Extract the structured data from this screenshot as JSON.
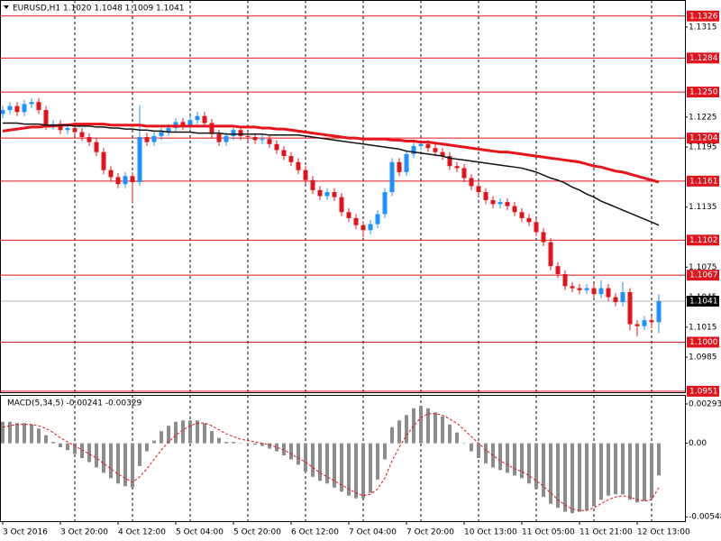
{
  "chart_data": [
    {
      "type": "candlestick",
      "title": "EURUSD,H1  1.1020 1.1048 1.1009 1.1041",
      "categories": [
        "3 Oct 2016",
        null,
        null,
        null,
        null,
        null,
        null,
        null,
        "3 Oct 20:00",
        null,
        null,
        null,
        null,
        null,
        null,
        null,
        "4 Oct 12:00",
        null,
        null,
        null,
        null,
        null,
        null,
        null,
        "5 Oct 04:00",
        null,
        null,
        null,
        null,
        null,
        null,
        null,
        "5 Oct 20:00",
        null,
        null,
        null,
        null,
        null,
        null,
        null,
        "6 Oct 12:00",
        null,
        null,
        null,
        null,
        null,
        null,
        null,
        "7 Oct 04:00",
        null,
        null,
        null,
        null,
        null,
        null,
        null,
        "7 Oct 20:00",
        null,
        null,
        null,
        null,
        null,
        null,
        null,
        "10 Oct 13:00",
        null,
        null,
        null,
        null,
        null,
        null,
        null,
        "11 Oct 05:00",
        null,
        null,
        null,
        null,
        null,
        null,
        null,
        "11 Oct 21:00",
        null,
        null,
        null,
        null,
        null,
        null,
        null,
        "12 Oct 13:00",
        null,
        null,
        null
      ],
      "open": [
        1.1228,
        1.1232,
        1.1236,
        1.123,
        1.1238,
        1.124,
        1.1232,
        1.1216,
        1.1218,
        1.1212,
        1.1214,
        1.121,
        1.1205,
        1.12,
        1.119,
        1.1172,
        1.1165,
        1.1158,
        1.1166,
        1.116,
        1.1205,
        1.12,
        1.1206,
        1.121,
        1.1214,
        1.122,
        1.1216,
        1.1222,
        1.1226,
        1.1219,
        1.1208,
        1.12,
        1.1206,
        1.1212,
        1.1206,
        1.1205,
        1.1202,
        1.1203,
        1.1198,
        1.1192,
        1.1186,
        1.118,
        1.1172,
        1.1162,
        1.1152,
        1.1146,
        1.115,
        1.1145,
        1.113,
        1.1124,
        1.1117,
        1.1112,
        1.1118,
        1.1128,
        1.115,
        1.118,
        1.117,
        1.1188,
        1.1196,
        1.1198,
        1.1194,
        1.119,
        1.1186,
        1.1176,
        1.1174,
        1.1164,
        1.1156,
        1.115,
        1.1142,
        1.1138,
        1.114,
        1.1136,
        1.113,
        1.1124,
        1.112,
        1.111,
        1.11,
        1.1076,
        1.1068,
        1.1056,
        1.1054,
        1.1052,
        1.1054,
        1.1048,
        1.1054,
        1.1045,
        1.104,
        1.105,
        1.1018,
        1.1016,
        1.1022,
        1.102
      ],
      "high": [
        1.1236,
        1.124,
        1.124,
        1.1242,
        1.1244,
        1.1244,
        1.1236,
        1.1222,
        1.1222,
        1.1218,
        1.1218,
        1.1214,
        1.1209,
        1.1204,
        1.1194,
        1.1176,
        1.1169,
        1.117,
        1.117,
        1.1237,
        1.1209,
        1.121,
        1.1214,
        1.1218,
        1.1224,
        1.1224,
        1.1226,
        1.123,
        1.123,
        1.1223,
        1.1212,
        1.121,
        1.1216,
        1.1216,
        1.121,
        1.1209,
        1.1207,
        1.1207,
        1.1202,
        1.1196,
        1.119,
        1.1184,
        1.1176,
        1.1166,
        1.1156,
        1.1154,
        1.1154,
        1.1149,
        1.1134,
        1.1128,
        1.1121,
        1.1122,
        1.1132,
        1.1154,
        1.1184,
        1.1184,
        1.1192,
        1.12,
        1.1202,
        1.1202,
        1.1198,
        1.1194,
        1.119,
        1.118,
        1.1178,
        1.1168,
        1.116,
        1.1154,
        1.1146,
        1.1144,
        1.1144,
        1.114,
        1.1134,
        1.1128,
        1.1124,
        1.1114,
        1.1104,
        1.108,
        1.1072,
        1.106,
        1.1058,
        1.1058,
        1.1058,
        1.1062,
        1.1058,
        1.1049,
        1.106,
        1.1054,
        1.1022,
        1.1026,
        1.1026,
        1.1048
      ],
      "low": [
        1.1224,
        1.1228,
        1.1226,
        1.1226,
        1.1234,
        1.1228,
        1.1212,
        1.1212,
        1.1208,
        1.1208,
        1.1206,
        1.1201,
        1.1196,
        1.1186,
        1.1168,
        1.1161,
        1.1154,
        1.1154,
        1.114,
        1.1156,
        1.1196,
        1.1196,
        1.1202,
        1.1206,
        1.121,
        1.1212,
        1.1212,
        1.1218,
        1.1215,
        1.1204,
        1.1196,
        1.1196,
        1.1202,
        1.1202,
        1.1201,
        1.1198,
        1.1198,
        1.1194,
        1.1188,
        1.1182,
        1.1176,
        1.1168,
        1.1158,
        1.1148,
        1.1142,
        1.1142,
        1.1141,
        1.1126,
        1.112,
        1.1113,
        1.1105,
        1.1108,
        1.1114,
        1.1124,
        1.1146,
        1.1166,
        1.1166,
        1.1184,
        1.1192,
        1.119,
        1.1186,
        1.1182,
        1.1172,
        1.117,
        1.116,
        1.1152,
        1.1146,
        1.1138,
        1.1134,
        1.1134,
        1.1132,
        1.1126,
        1.112,
        1.1116,
        1.1106,
        1.1096,
        1.1072,
        1.1064,
        1.1052,
        1.105,
        1.1048,
        1.1048,
        1.1044,
        1.1044,
        1.1041,
        1.1036,
        1.1036,
        1.1012,
        1.1006,
        1.1012,
        1.1014,
        1.1009
      ],
      "close": [
        1.1232,
        1.1236,
        1.123,
        1.1238,
        1.124,
        1.1232,
        1.1216,
        1.1218,
        1.1212,
        1.1214,
        1.121,
        1.1205,
        1.12,
        1.119,
        1.1172,
        1.1165,
        1.1158,
        1.1166,
        1.116,
        1.1205,
        1.12,
        1.1206,
        1.121,
        1.1214,
        1.122,
        1.1216,
        1.1222,
        1.1226,
        1.1219,
        1.1208,
        1.12,
        1.1206,
        1.1212,
        1.1206,
        1.1205,
        1.1202,
        1.1203,
        1.1198,
        1.1192,
        1.1186,
        1.118,
        1.1172,
        1.1162,
        1.1152,
        1.1146,
        1.115,
        1.1145,
        1.113,
        1.1124,
        1.1117,
        1.1112,
        1.1118,
        1.1128,
        1.115,
        1.118,
        1.117,
        1.1188,
        1.1196,
        1.1198,
        1.1194,
        1.119,
        1.1186,
        1.1176,
        1.1174,
        1.1164,
        1.1156,
        1.115,
        1.1142,
        1.1138,
        1.114,
        1.1136,
        1.113,
        1.1124,
        1.112,
        1.111,
        1.11,
        1.1076,
        1.1068,
        1.1056,
        1.1054,
        1.1052,
        1.1054,
        1.1048,
        1.1054,
        1.1045,
        1.104,
        1.105,
        1.1018,
        1.1016,
        1.1022,
        1.102,
        1.1041
      ],
      "up_color": "#1e90ff",
      "down_color": "#e0141c",
      "moving_averages": [
        {
          "color": "#e8141c",
          "values": [
            1.1211,
            1.1212,
            1.1213,
            1.1214,
            1.1215,
            1.1215,
            1.1216,
            1.1216,
            1.1217,
            1.1217,
            1.1218,
            1.1218,
            1.1218,
            1.1218,
            1.1218,
            1.1217,
            1.1217,
            1.1217,
            1.1217,
            1.1217,
            1.1216,
            1.1216,
            1.1216,
            1.1216,
            1.1216,
            1.1216,
            1.1216,
            1.1216,
            1.1216,
            1.1216,
            1.1216,
            1.1216,
            1.1216,
            1.1215,
            1.1215,
            1.1215,
            1.1214,
            1.1214,
            1.1213,
            1.1213,
            1.1212,
            1.1211,
            1.121,
            1.1209,
            1.1208,
            1.1207,
            1.1206,
            1.1205,
            1.1204,
            1.1204,
            1.1203,
            1.1203,
            1.1203,
            1.1203,
            1.1202,
            1.1202,
            1.1201,
            1.1201,
            1.12,
            1.12,
            1.1199,
            1.1198,
            1.1197,
            1.1196,
            1.1195,
            1.1194,
            1.1193,
            1.1192,
            1.1191,
            1.119,
            1.119,
            1.1189,
            1.1188,
            1.1187,
            1.1186,
            1.1185,
            1.1184,
            1.1183,
            1.1182,
            1.1181,
            1.118,
            1.1178,
            1.1176,
            1.1175,
            1.1173,
            1.1171,
            1.117,
            1.1168,
            1.1166,
            1.1164,
            1.1162,
            1.116
          ]
        },
        {
          "color": "#111111",
          "values": [
            1.1219,
            1.1219,
            1.1219,
            1.1218,
            1.1218,
            1.1218,
            1.1217,
            1.1217,
            1.1217,
            1.1217,
            1.1216,
            1.1216,
            1.1216,
            1.1215,
            1.1215,
            1.1214,
            1.1214,
            1.1213,
            1.1213,
            1.1212,
            1.1212,
            1.1211,
            1.1211,
            1.121,
            1.121,
            1.121,
            1.121,
            1.1209,
            1.1209,
            1.1209,
            1.1209,
            1.1208,
            1.1208,
            1.1208,
            1.1208,
            1.1208,
            1.1208,
            1.1207,
            1.1207,
            1.1207,
            1.1207,
            1.1207,
            1.1206,
            1.1205,
            1.1204,
            1.1203,
            1.1202,
            1.1201,
            1.12,
            1.1199,
            1.1198,
            1.1197,
            1.1196,
            1.1195,
            1.1194,
            1.1193,
            1.1191,
            1.119,
            1.1189,
            1.1188,
            1.1187,
            1.1186,
            1.1184,
            1.1183,
            1.1182,
            1.1181,
            1.118,
            1.1179,
            1.1178,
            1.1177,
            1.1176,
            1.1175,
            1.1174,
            1.1172,
            1.117,
            1.1167,
            1.1164,
            1.1162,
            1.1159,
            1.1155,
            1.1152,
            1.1148,
            1.1145,
            1.1141,
            1.1138,
            1.1135,
            1.1132,
            1.1129,
            1.1126,
            1.1123,
            1.112,
            1.1117
          ]
        }
      ],
      "levels": [
        1.1326,
        1.1284,
        {
          "value": 1.125,
          "label": "1.1250"
        },
        1.1204,
        1.1161,
        1.1102,
        1.1067,
        {
          "value": 1.1,
          "label": "1.1000"
        },
        1.0951
      ],
      "level_color": "#e0141c",
      "current_price": 1.1041,
      "ylim": [
        1.095,
        1.1342
      ],
      "yticks": [
        1.1315,
        1.1225,
        1.1195,
        1.1135,
        1.1075,
        1.1045,
        1.1015,
        1.0985
      ],
      "grid": true
    },
    {
      "type": "macd",
      "title": "MACD(5,34,5) -0.00241 -0.00329",
      "values": [
        0.0016,
        0.0016,
        0.0015,
        0.0015,
        0.0014,
        0.0011,
        0.0006,
        0.0001,
        -0.0003,
        -0.0005,
        -0.0008,
        -0.0011,
        -0.0014,
        -0.0018,
        -0.0022,
        -0.0026,
        -0.003,
        -0.0032,
        -0.0033,
        -0.0017,
        -0.0006,
        0.0002,
        0.0009,
        0.0013,
        0.0016,
        0.0017,
        0.0017,
        0.0017,
        0.0015,
        0.0009,
        0.0004,
        0.0001,
        0.0001,
        0.0,
        0.0,
        -0.0001,
        -0.0002,
        -0.0004,
        -0.0006,
        -0.0009,
        -0.0012,
        -0.0016,
        -0.0021,
        -0.0025,
        -0.0028,
        -0.003,
        -0.0033,
        -0.0036,
        -0.0039,
        -0.0041,
        -0.0041,
        -0.0037,
        -0.0027,
        -0.0012,
        0.0012,
        0.0017,
        0.0021,
        0.0026,
        0.0028,
        0.0026,
        0.0023,
        0.002,
        0.0014,
        0.0008,
        0.0,
        -0.0006,
        -0.0011,
        -0.0015,
        -0.0018,
        -0.002,
        -0.0022,
        -0.0024,
        -0.0026,
        -0.003,
        -0.0034,
        -0.004,
        -0.0045,
        -0.0048,
        -0.0051,
        -0.0052,
        -0.0051,
        -0.005,
        -0.0047,
        -0.0042,
        -0.0039,
        -0.0038,
        -0.0038,
        -0.0042,
        -0.0044,
        -0.0043,
        -0.0041,
        -0.0024
      ],
      "signal": [
        0.0012,
        0.0013,
        0.0014,
        0.0014,
        0.0014,
        0.0013,
        0.0011,
        0.0008,
        0.0004,
        0.0001,
        -0.0002,
        -0.0005,
        -0.0008,
        -0.0011,
        -0.0015,
        -0.0019,
        -0.0023,
        -0.0026,
        -0.0029,
        -0.0025,
        -0.0019,
        -0.0012,
        -0.0005,
        0.0001,
        0.0006,
        0.001,
        0.0013,
        0.0015,
        0.0015,
        0.0013,
        0.001,
        0.0007,
        0.0005,
        0.0003,
        0.0002,
        0.0001,
        0.0,
        -0.0001,
        -0.0003,
        -0.0005,
        -0.0008,
        -0.0011,
        -0.0014,
        -0.0018,
        -0.0022,
        -0.0025,
        -0.0028,
        -0.0031,
        -0.0034,
        -0.0037,
        -0.0039,
        -0.0038,
        -0.0034,
        -0.0026,
        -0.0013,
        -0.0003,
        0.0006,
        0.0013,
        0.0019,
        0.0022,
        0.0022,
        0.0021,
        0.0018,
        0.0015,
        0.001,
        0.0005,
        0.0,
        -0.0005,
        -0.0009,
        -0.0013,
        -0.0016,
        -0.0019,
        -0.0021,
        -0.0024,
        -0.0028,
        -0.0032,
        -0.0037,
        -0.0042,
        -0.0046,
        -0.0049,
        -0.005,
        -0.005,
        -0.0048,
        -0.0045,
        -0.0042,
        -0.004,
        -0.0039,
        -0.004,
        -0.0042,
        -0.0043,
        -0.0042,
        -0.0033
      ],
      "color": "#8c8c8c",
      "signal_color": "#e0141c",
      "ylim": [
        -0.0058,
        0.0036
      ],
      "yticks": [
        0.00293,
        {
          "value": 0,
          "label": "0.00"
        },
        -0.00548
      ]
    }
  ]
}
